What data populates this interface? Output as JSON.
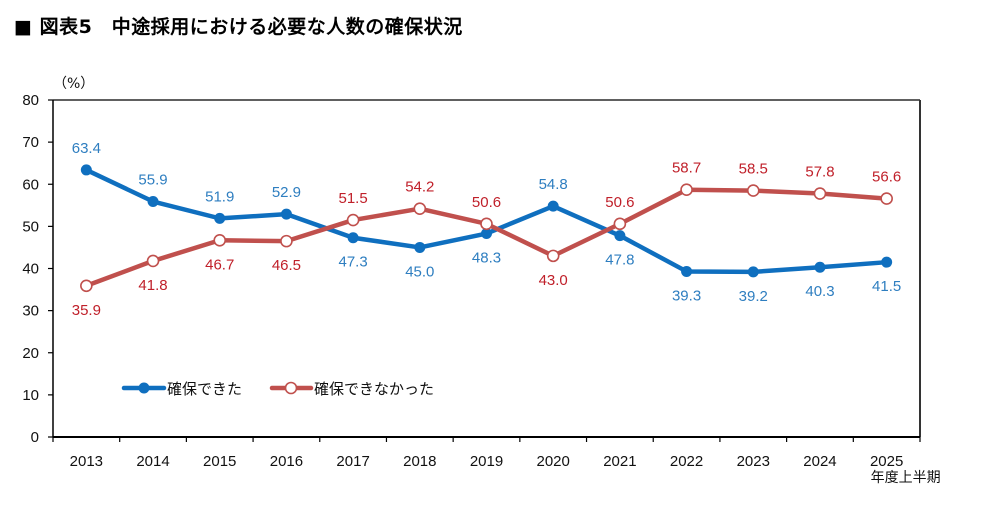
{
  "title": "■ 図表5　中途採用における必要な人数の確保状況",
  "chart_data": {
    "type": "line",
    "title": "図表5　中途採用における必要な人数の確保状況",
    "unit_label": "（%）",
    "xlabel": "",
    "ylabel": "（%）",
    "ylim": [
      0,
      80
    ],
    "yticks": [
      0,
      10,
      20,
      30,
      40,
      50,
      60,
      70,
      80
    ],
    "grid": false,
    "categories": [
      "2013",
      "2014",
      "2015",
      "2016",
      "2017",
      "2018",
      "2019",
      "2020",
      "2021",
      "2022",
      "2023",
      "2024",
      "2025"
    ],
    "category_sublabels": {
      "2025": "年度上半期"
    },
    "series": [
      {
        "name": "確保できた",
        "color": "#0F6FBF",
        "label_color": "#2E7EC0",
        "marker": "filled-circle",
        "values": [
          63.4,
          55.9,
          51.9,
          52.9,
          47.3,
          45.0,
          48.3,
          54.8,
          47.8,
          39.3,
          39.2,
          40.3,
          41.5
        ],
        "label_pos": [
          "above",
          "above",
          "above",
          "above",
          "below",
          "below",
          "below",
          "above",
          "below",
          "below",
          "below",
          "below",
          "below"
        ]
      },
      {
        "name": "確保できなかった",
        "color": "#C0504D",
        "label_color": "#C0202A",
        "marker": "hollow-circle",
        "values": [
          35.9,
          41.8,
          46.7,
          46.5,
          51.5,
          54.2,
          50.6,
          43.0,
          50.6,
          58.7,
          58.5,
          57.8,
          56.6
        ],
        "label_pos": [
          "below",
          "below",
          "below",
          "below",
          "above",
          "above",
          "above",
          "below",
          "above",
          "above",
          "above",
          "above",
          "above"
        ]
      }
    ],
    "legend": {
      "placement": "bottom-left-inside"
    }
  }
}
